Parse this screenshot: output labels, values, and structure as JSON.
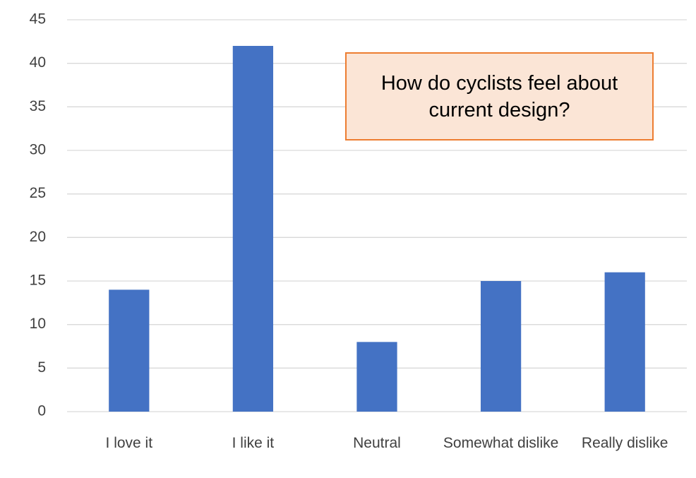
{
  "chart_data": {
    "type": "bar",
    "title": "How do cyclists feel about current design?",
    "categories": [
      "I love it",
      "I like it",
      "Neutral",
      "Somewhat dislike",
      "Really dislike"
    ],
    "values": [
      14,
      42,
      8,
      15,
      16
    ],
    "color": "#4472c4",
    "ylim": [
      0,
      45
    ],
    "yticks": [
      0,
      5,
      10,
      15,
      20,
      25,
      30,
      35,
      40,
      45
    ],
    "grid": true
  }
}
